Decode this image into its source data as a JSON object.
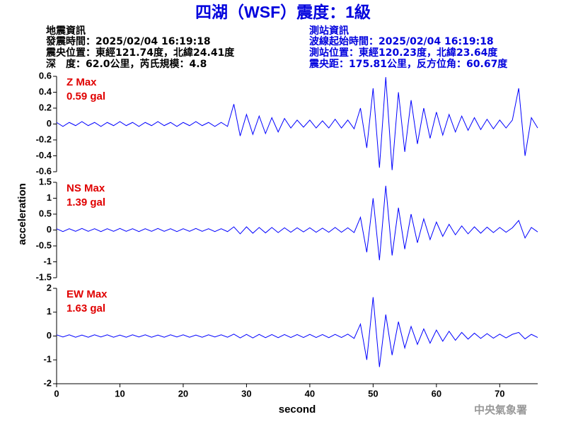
{
  "header": {
    "title": "四湖（WSF）震度：1級",
    "quake": [
      "地震資訊",
      "發震時間：2025/02/04 16:19:18",
      "震央位置：東經121.74度，北緯24.41度",
      "深　度：62.0公里，芮氏規模：4.8"
    ],
    "station": [
      "測站資訊",
      "波線起始時間：2025/02/04 16:19:18",
      "測站位置：東經120.23度，北緯23.64度",
      "震央距：175.81公里，反方位角：60.67度"
    ],
    "ylabel": "acceleration",
    "watermark": "中央氣象署"
  },
  "chart_data": [
    {
      "type": "line",
      "annotation_title": "Z Max",
      "annotation": "0.59 gal",
      "color": "#0000ff",
      "x": [
        0,
        1,
        2,
        3,
        4,
        5,
        6,
        7,
        8,
        9,
        10,
        11,
        12,
        13,
        14,
        15,
        16,
        17,
        18,
        19,
        20,
        21,
        22,
        23,
        24,
        25,
        26,
        27,
        28,
        29,
        30,
        31,
        32,
        33,
        34,
        35,
        36,
        37,
        38,
        39,
        40,
        41,
        42,
        43,
        44,
        45,
        46,
        47,
        48,
        49,
        50,
        51,
        52,
        53,
        54,
        55,
        56,
        57,
        58,
        59,
        60,
        61,
        62,
        63,
        64,
        65,
        66,
        67,
        68,
        69,
        70,
        71,
        72,
        73,
        74,
        75,
        76
      ],
      "values": [
        0.02,
        -0.03,
        0.02,
        -0.02,
        0.03,
        -0.02,
        0.02,
        -0.03,
        0.02,
        -0.02,
        0.03,
        -0.02,
        0.02,
        -0.03,
        0.02,
        -0.02,
        0.03,
        -0.02,
        0.02,
        -0.03,
        0.02,
        -0.02,
        0.03,
        -0.02,
        0.02,
        -0.03,
        0.02,
        -0.03,
        0.25,
        -0.15,
        0.12,
        -0.13,
        0.1,
        -0.12,
        0.08,
        -0.1,
        0.07,
        -0.05,
        0.05,
        -0.04,
        0.05,
        -0.05,
        0.04,
        -0.05,
        0.06,
        -0.05,
        0.05,
        -0.06,
        0.2,
        -0.3,
        0.45,
        -0.55,
        0.59,
        -0.58,
        0.4,
        -0.35,
        0.3,
        -0.25,
        0.2,
        -0.18,
        0.15,
        -0.14,
        0.12,
        -0.1,
        0.1,
        -0.08,
        0.08,
        -0.07,
        0.06,
        -0.06,
        0.05,
        -0.05,
        0.05,
        0.45,
        -0.4,
        0.08,
        -0.05
      ],
      "xlim": [
        0,
        76
      ],
      "ylim": [
        -0.6,
        0.6
      ],
      "yticks": [
        0.6,
        0.4,
        0.2,
        0,
        -0.2,
        -0.4,
        -0.6
      ]
    },
    {
      "type": "line",
      "annotation_title": "NS Max",
      "annotation": "1.39 gal",
      "color": "#0000ff",
      "x": [
        0,
        1,
        2,
        3,
        4,
        5,
        6,
        7,
        8,
        9,
        10,
        11,
        12,
        13,
        14,
        15,
        16,
        17,
        18,
        19,
        20,
        21,
        22,
        23,
        24,
        25,
        26,
        27,
        28,
        29,
        30,
        31,
        32,
        33,
        34,
        35,
        36,
        37,
        38,
        39,
        40,
        41,
        42,
        43,
        44,
        45,
        46,
        47,
        48,
        49,
        50,
        51,
        52,
        53,
        54,
        55,
        56,
        57,
        58,
        59,
        60,
        61,
        62,
        63,
        64,
        65,
        66,
        67,
        68,
        69,
        70,
        71,
        72,
        73,
        74,
        75,
        76
      ],
      "values": [
        0.04,
        -0.05,
        0.04,
        -0.04,
        0.05,
        -0.04,
        0.04,
        -0.05,
        0.04,
        -0.04,
        0.05,
        -0.04,
        0.04,
        -0.05,
        0.04,
        -0.04,
        0.05,
        -0.04,
        0.04,
        -0.05,
        0.04,
        -0.04,
        0.05,
        -0.04,
        0.04,
        -0.05,
        0.04,
        -0.05,
        0.1,
        -0.12,
        0.1,
        -0.1,
        0.08,
        -0.09,
        0.08,
        -0.08,
        0.07,
        -0.07,
        0.07,
        -0.06,
        0.07,
        -0.07,
        0.06,
        -0.07,
        0.08,
        -0.07,
        0.07,
        -0.08,
        0.4,
        -0.7,
        1.0,
        -0.95,
        1.39,
        -0.8,
        0.7,
        -0.6,
        0.5,
        -0.4,
        0.35,
        -0.3,
        0.25,
        -0.2,
        0.18,
        -0.15,
        0.13,
        -0.12,
        0.1,
        -0.1,
        0.09,
        -0.08,
        0.08,
        -0.07,
        0.07,
        0.3,
        -0.25,
        0.08,
        -0.06
      ],
      "xlim": [
        0,
        76
      ],
      "ylim": [
        -1.5,
        1.5
      ],
      "yticks": [
        1.5,
        1,
        0.5,
        0,
        -0.5,
        -1,
        -1.5
      ]
    },
    {
      "type": "line",
      "annotation_title": "EW Max",
      "annotation": "1.63 gal",
      "color": "#0000ff",
      "x": [
        0,
        1,
        2,
        3,
        4,
        5,
        6,
        7,
        8,
        9,
        10,
        11,
        12,
        13,
        14,
        15,
        16,
        17,
        18,
        19,
        20,
        21,
        22,
        23,
        24,
        25,
        26,
        27,
        28,
        29,
        30,
        31,
        32,
        33,
        34,
        35,
        36,
        37,
        38,
        39,
        40,
        41,
        42,
        43,
        44,
        45,
        46,
        47,
        48,
        49,
        50,
        51,
        52,
        53,
        54,
        55,
        56,
        57,
        58,
        59,
        60,
        61,
        62,
        63,
        64,
        65,
        66,
        67,
        68,
        69,
        70,
        71,
        72,
        73,
        74,
        75,
        76
      ],
      "values": [
        0.05,
        -0.04,
        0.05,
        -0.05,
        0.04,
        -0.05,
        0.05,
        -0.04,
        0.05,
        -0.05,
        0.04,
        -0.05,
        0.05,
        -0.04,
        0.05,
        -0.05,
        0.04,
        -0.05,
        0.05,
        -0.04,
        0.05,
        -0.05,
        0.04,
        -0.05,
        0.05,
        -0.04,
        0.05,
        -0.05,
        0.08,
        -0.08,
        0.07,
        -0.08,
        0.07,
        -0.07,
        0.06,
        -0.07,
        0.06,
        -0.06,
        0.06,
        -0.06,
        0.07,
        -0.06,
        0.06,
        -0.07,
        0.07,
        -0.06,
        0.08,
        -0.1,
        0.5,
        -1.0,
        1.63,
        -1.3,
        0.9,
        -0.8,
        0.6,
        -0.5,
        0.4,
        -0.35,
        0.3,
        -0.3,
        0.25,
        -0.22,
        0.2,
        -0.18,
        0.15,
        -0.13,
        0.12,
        -0.1,
        0.1,
        -0.09,
        0.08,
        -0.08,
        0.07,
        0.15,
        -0.12,
        0.07,
        -0.06
      ],
      "xlim": [
        0,
        76
      ],
      "ylim": [
        -2,
        2
      ],
      "yticks": [
        2,
        1,
        0,
        -1,
        -2
      ],
      "xticks": [
        0,
        10,
        20,
        30,
        40,
        50,
        60,
        70
      ],
      "xlabel": "second"
    }
  ]
}
